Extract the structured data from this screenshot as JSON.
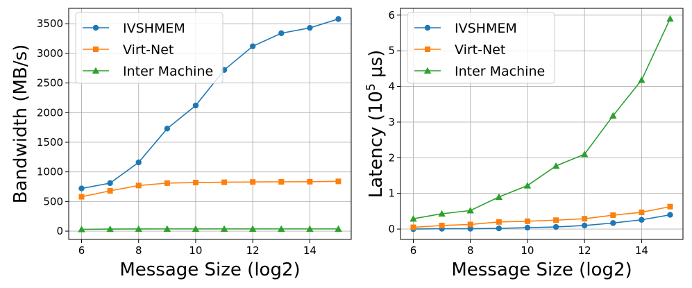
{
  "chart_data": [
    {
      "type": "line",
      "title": "",
      "xlabel": "Message Size (log2)",
      "ylabel": "Bandwidth (MB/s)",
      "xlim": [
        5.55,
        15.45
      ],
      "ylim": [
        -140,
        3760
      ],
      "xticks": [
        6,
        8,
        10,
        12,
        14
      ],
      "yticks": [
        0,
        500,
        1000,
        1500,
        2000,
        2500,
        3000,
        3500
      ],
      "grid": true,
      "legend_position": "top-left",
      "x": [
        6,
        7,
        8,
        9,
        10,
        11,
        12,
        13,
        14,
        15
      ],
      "series": [
        {
          "name": "IVSHMEM",
          "color": "#1f77b4",
          "marker": "circle",
          "values": [
            720,
            810,
            1160,
            1730,
            2120,
            2720,
            3120,
            3340,
            3430,
            3580
          ]
        },
        {
          "name": "Virt-Net",
          "color": "#ff7f0e",
          "marker": "square",
          "values": [
            580,
            680,
            770,
            810,
            820,
            825,
            830,
            832,
            834,
            840
          ]
        },
        {
          "name": "Inter Machine",
          "color": "#2ca02c",
          "marker": "triangle",
          "values": [
            30,
            35,
            36,
            37,
            37,
            37,
            37,
            37,
            37,
            37
          ]
        }
      ]
    },
    {
      "type": "line",
      "title": "",
      "xlabel": "Message Size (log2)",
      "ylabel": "Latency (10",
      "ylabel_sup": "5",
      "ylabel_unit": " μs)",
      "xlim": [
        5.55,
        15.45
      ],
      "ylim": [
        -0.29,
        6.19
      ],
      "xticks": [
        6,
        8,
        10,
        12,
        14
      ],
      "yticks": [
        0,
        1,
        2,
        3,
        4,
        5,
        6
      ],
      "grid": true,
      "legend_position": "top-left",
      "x": [
        6,
        7,
        8,
        9,
        10,
        11,
        12,
        13,
        14,
        15
      ],
      "series": [
        {
          "name": "IVSHMEM",
          "color": "#1f77b4",
          "marker": "circle",
          "values": [
            0.0,
            0.01,
            0.01,
            0.02,
            0.04,
            0.06,
            0.1,
            0.17,
            0.26,
            0.4
          ]
        },
        {
          "name": "Virt-Net",
          "color": "#ff7f0e",
          "marker": "square",
          "values": [
            0.05,
            0.1,
            0.13,
            0.2,
            0.22,
            0.25,
            0.29,
            0.39,
            0.47,
            0.63
          ]
        },
        {
          "name": "Inter Machine",
          "color": "#2ca02c",
          "marker": "triangle",
          "values": [
            0.29,
            0.43,
            0.52,
            0.9,
            1.22,
            1.77,
            2.1,
            3.18,
            4.18,
            5.9
          ]
        }
      ]
    }
  ]
}
